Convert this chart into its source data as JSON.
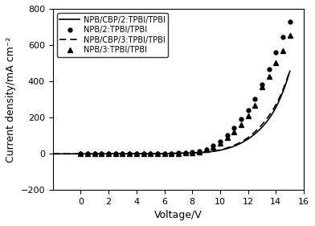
{
  "title": "",
  "xlabel": "Voltage/V",
  "ylabel": "Current density/mA cm⁻²",
  "xlim": [
    -2,
    16
  ],
  "ylim": [
    -200,
    800
  ],
  "xticks": [
    0,
    2,
    4,
    6,
    8,
    10,
    12,
    14,
    16
  ],
  "yticks": [
    -200,
    0,
    200,
    400,
    600,
    800
  ],
  "legend_entries": [
    "NPB/CBP/2:TPBI/TPBI",
    "NPB/2:TPBI/TPBI",
    "NPB/CBP/3:TPBI/TPBI",
    "NPB/3:TPBI/TPBI"
  ],
  "color": "#000000",
  "background": "#ffffff",
  "figsize": [
    3.92,
    2.81
  ],
  "dpi": 100,
  "V_dots": [
    0,
    0.5,
    1,
    1.5,
    2,
    2.5,
    3,
    3.5,
    4,
    4.5,
    5,
    5.5,
    6,
    6.5,
    7,
    7.5,
    8,
    8.5,
    9,
    9.5,
    10,
    10.5,
    11,
    11.5,
    12,
    12.5,
    13,
    13.5,
    14,
    14.5,
    15
  ],
  "I_dots": [
    -2,
    -2,
    -2,
    -2,
    -2,
    -2,
    -2,
    -2,
    -2,
    -2,
    -1.5,
    -1,
    -0.5,
    0.5,
    1.5,
    3,
    6,
    12,
    23,
    42,
    68,
    100,
    140,
    190,
    240,
    300,
    380,
    465,
    560,
    645,
    728
  ],
  "V_tri": [
    0,
    0.5,
    1,
    1.5,
    2,
    2.5,
    3,
    3.5,
    4,
    4.5,
    5,
    5.5,
    6,
    6.5,
    7,
    7.5,
    8,
    8.5,
    9,
    9.5,
    10,
    10.5,
    11,
    11.5,
    12,
    12.5,
    13,
    13.5,
    14,
    14.5,
    15
  ],
  "I_tri": [
    -2,
    -2,
    -2,
    -2,
    -2,
    -2,
    -2,
    -2,
    -2,
    -2,
    -1.5,
    -1,
    -0.5,
    0.3,
    1.2,
    2.5,
    5,
    10,
    20,
    36,
    58,
    86,
    118,
    160,
    208,
    265,
    368,
    428,
    500,
    570,
    655
  ],
  "V_solid_pts": [
    -2,
    -1,
    0,
    1,
    2,
    3,
    4,
    5,
    6,
    7,
    8,
    9,
    10,
    11,
    12,
    13,
    14,
    15
  ],
  "I_solid_pts": [
    -2,
    -2,
    -2,
    -2,
    -2,
    -2,
    -2,
    -1,
    -0.5,
    0.8,
    2.5,
    7,
    18,
    40,
    80,
    145,
    255,
    455
  ],
  "I_dashed_pts": [
    -2,
    -2,
    -2,
    -2,
    -2,
    -2,
    -2,
    -1,
    -0.5,
    0.9,
    2.8,
    8,
    20,
    45,
    88,
    160,
    270,
    460
  ]
}
